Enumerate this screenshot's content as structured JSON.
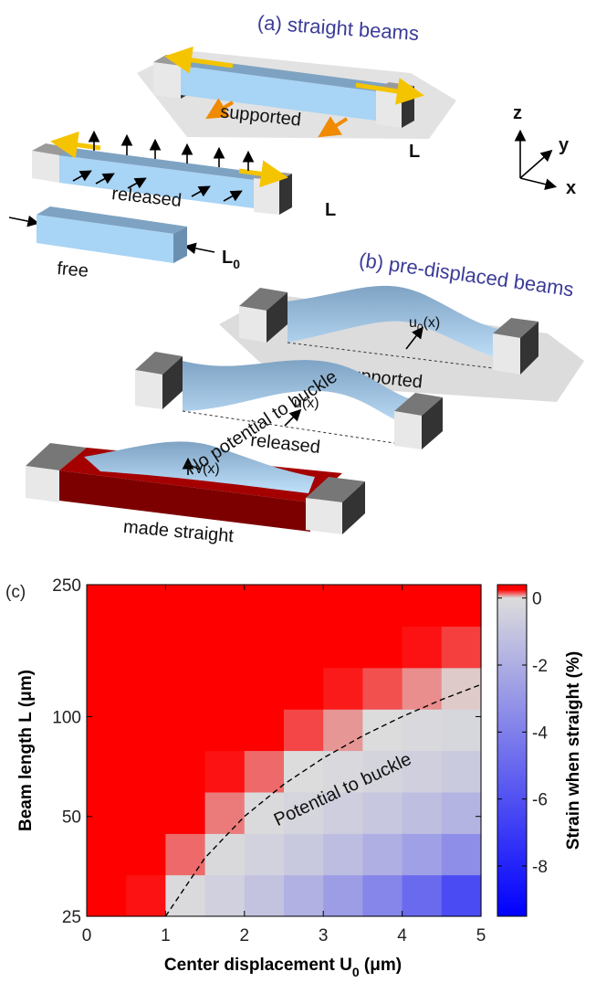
{
  "diagram": {
    "a": {
      "title": "(a) straight beams",
      "supported": "supported",
      "released": "released",
      "free": "free",
      "length_supported": "L",
      "length_released": "L",
      "length_free": {
        "main": "L",
        "sub": "0"
      }
    },
    "axes": {
      "z": "z",
      "y": "y",
      "x": "x"
    },
    "b": {
      "title": "(b) pre-displaced beams",
      "supported": "supported",
      "displacement_supported": {
        "main": "u",
        "sub": "0",
        "rest": "(x)"
      },
      "released": "released",
      "displacement_released": "u(x)",
      "made_straight": "made straight",
      "displacement_straight": "v(x)"
    }
  },
  "chart_data": {
    "type": "heatmap",
    "panel": "(c)",
    "xlabel": {
      "main": "Center displacement U",
      "sub": "0",
      "rest": " (μm)"
    },
    "ylabel": "Beam length L (μm)",
    "colorbar_label": "Strain when straight (%)",
    "annotations": [
      "No potential to buckle",
      "Potential to buckle"
    ],
    "xlim": [
      0,
      5
    ],
    "xticks": [
      0,
      1,
      2,
      3,
      4,
      5
    ],
    "ylim": [
      25,
      250
    ],
    "yticks": [
      25,
      50,
      100,
      250
    ],
    "ylog": true,
    "clim": [
      -9.5,
      0.4
    ],
    "cticks": [
      0,
      -2,
      -4,
      -6,
      -8
    ],
    "colormap": [
      {
        "value": -9.5,
        "color": "#0000ff"
      },
      {
        "value": 0,
        "color": "#dcdcdc"
      },
      {
        "value": 0.25,
        "color": "#ff0000"
      },
      {
        "value": 0.4,
        "color": "#ff0000"
      }
    ],
    "x": [
      0.25,
      0.75,
      1.25,
      1.75,
      2.25,
      2.75,
      3.25,
      3.75,
      4.25,
      4.75
    ],
    "y": [
      28.9,
      38.5,
      51.3,
      68.5,
      91.3,
      121.7,
      162.4,
      216.5
    ],
    "z": [
      [
        0.38,
        0.23,
        -0.07,
        -0.51,
        -1.1,
        -1.84,
        -2.73,
        -3.76,
        -4.94,
        -6.27
      ],
      [
        0.38,
        0.3,
        0.13,
        -0.12,
        -0.45,
        -0.86,
        -1.36,
        -1.95,
        -2.61,
        -3.36
      ],
      [
        0.39,
        0.34,
        0.25,
        0.11,
        -0.08,
        -0.31,
        -0.6,
        -0.92,
        -1.3,
        -1.72
      ],
      [
        0.39,
        0.37,
        0.31,
        0.23,
        0.13,
        0.0,
        -0.16,
        -0.34,
        -0.56,
        -0.79
      ],
      [
        0.39,
        0.38,
        0.35,
        0.3,
        0.25,
        0.17,
        0.08,
        -0.02,
        -0.14,
        -0.27
      ],
      [
        0.39,
        0.39,
        0.37,
        0.34,
        0.31,
        0.27,
        0.22,
        0.16,
        0.09,
        0.02
      ],
      [
        0.39,
        0.39,
        0.38,
        0.37,
        0.35,
        0.32,
        0.3,
        0.26,
        0.23,
        0.18
      ],
      [
        0.39,
        0.39,
        0.39,
        0.38,
        0.37,
        0.36,
        0.34,
        0.32,
        0.3,
        0.28
      ]
    ],
    "boundary": {
      "x": [
        1,
        1.5,
        2,
        2.5,
        3,
        3.5,
        4,
        4.5,
        5
      ],
      "y": [
        25,
        37.5,
        50,
        62.5,
        75,
        87.5,
        100,
        112.5,
        125
      ]
    }
  }
}
